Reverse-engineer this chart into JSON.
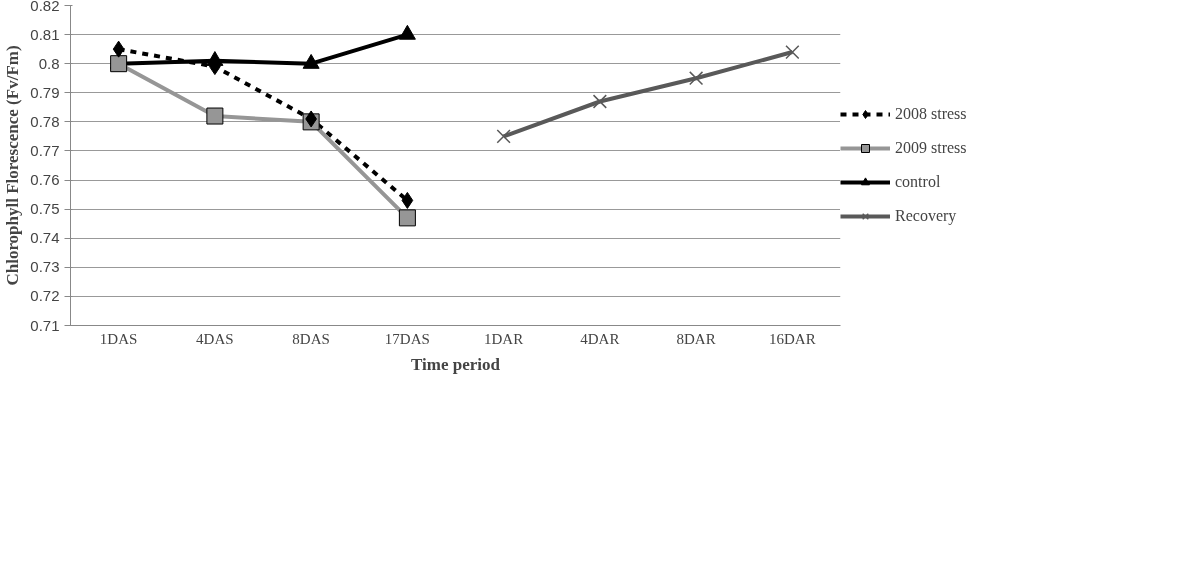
{
  "chart_data": {
    "type": "line",
    "xlabel": "Time period",
    "ylabel": "Chlorophyll Florescence (Fv/Fm)",
    "categories": [
      "1DAS",
      "4DAS",
      "8DAS",
      "17DAS",
      "1DAR",
      "4DAR",
      "8DAR",
      "16DAR"
    ],
    "series": [
      {
        "name": "2008 stress",
        "color": "#000000",
        "marker": "diamond",
        "line_style": "dashed",
        "values": [
          0.805,
          0.799,
          0.781,
          0.753,
          null,
          null,
          null,
          null
        ]
      },
      {
        "name": "2009 stress",
        "color": "#969696",
        "marker": "square",
        "line_style": "solid",
        "values": [
          0.8,
          0.782,
          0.78,
          0.747,
          null,
          null,
          null,
          null
        ]
      },
      {
        "name": "control",
        "color": "#000000",
        "marker": "triangle",
        "line_style": "solid",
        "values": [
          0.8,
          0.801,
          0.8,
          0.81,
          null,
          null,
          null,
          null
        ]
      },
      {
        "name": "Recovery",
        "color": "#595959",
        "marker": "cross",
        "line_style": "solid",
        "values": [
          null,
          null,
          null,
          null,
          0.775,
          0.787,
          0.795,
          0.804
        ]
      }
    ],
    "ylim": [
      0.71,
      0.82
    ],
    "yticks": [
      0.71,
      0.72,
      0.73,
      0.74,
      0.75,
      0.76,
      0.77,
      0.78,
      0.79,
      0.8,
      0.81,
      0.82
    ],
    "grid": "y",
    "legend": "right"
  }
}
